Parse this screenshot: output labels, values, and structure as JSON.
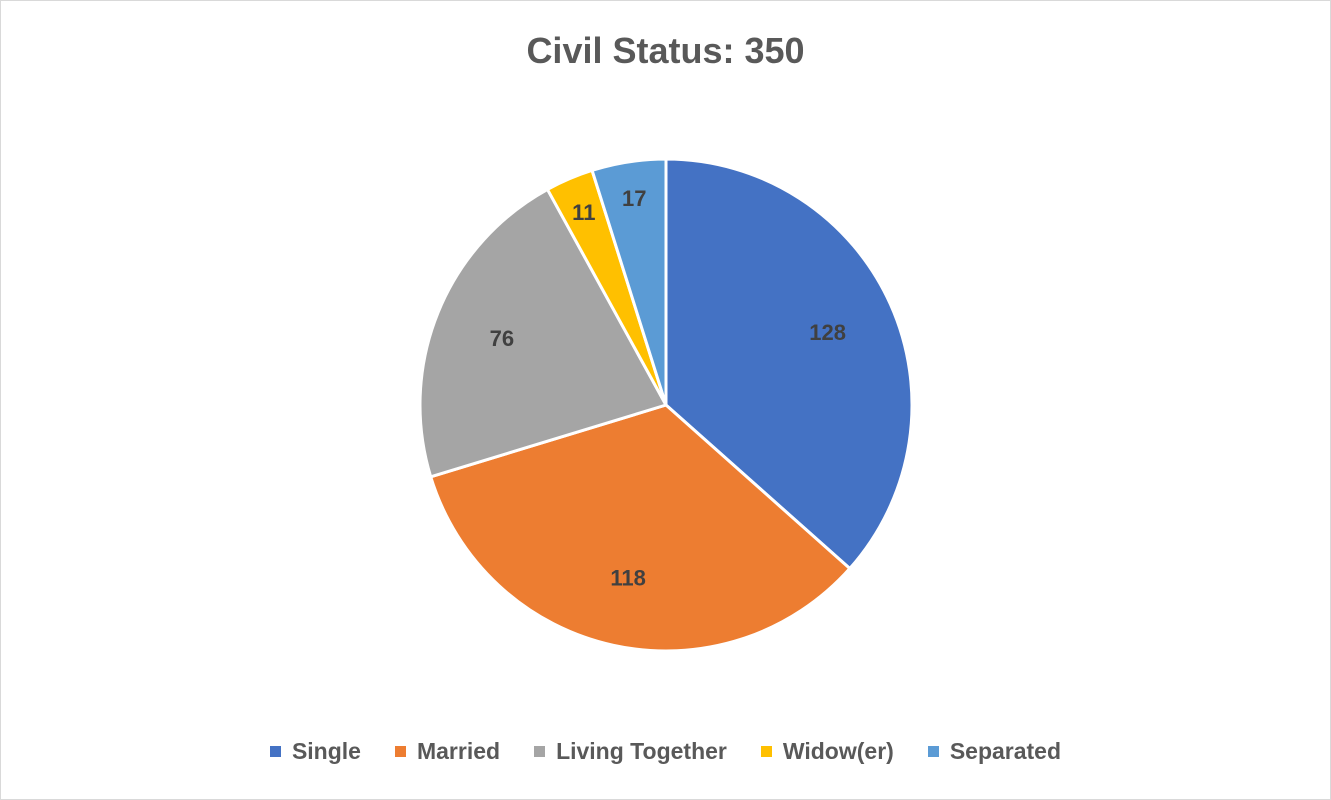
{
  "chart_data": {
    "type": "pie",
    "title": "Civil Status: 350",
    "categories": [
      "Single",
      "Married",
      "Living Together",
      "Widow(er)",
      "Separated"
    ],
    "values": [
      128,
      118,
      76,
      11,
      17
    ],
    "colors": [
      "#4472C4",
      "#ED7D31",
      "#A5A5A5",
      "#FFC000",
      "#5B9BD5"
    ],
    "legend_position": "bottom",
    "data_labels": true
  }
}
